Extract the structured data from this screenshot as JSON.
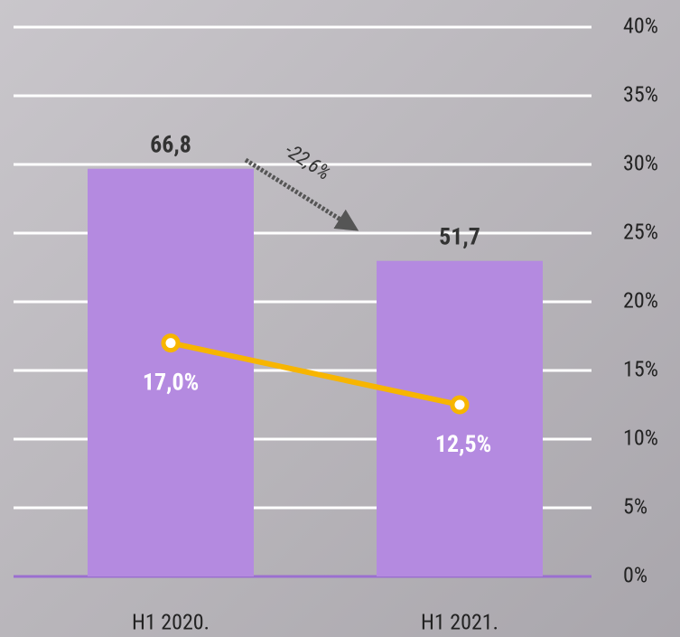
{
  "chart_data": {
    "type": "bar-line",
    "categories": [
      "H1 2020.",
      "H1 2021."
    ],
    "series": [
      {
        "type": "bar",
        "color": "#b48ae0",
        "values": [
          66.8,
          51.7
        ],
        "value_labels": [
          "66,8",
          "51,7"
        ]
      },
      {
        "type": "line",
        "axis": "y2",
        "color": "#f7b500",
        "values": [
          17.0,
          12.5
        ],
        "value_labels": [
          "17,0%",
          "12,5%"
        ]
      }
    ],
    "ylim": [
      0,
      90
    ],
    "y2lim": [
      0,
      40
    ],
    "y2ticks": [
      {
        "value": 0,
        "label": "0%"
      },
      {
        "value": 5,
        "label": "5%"
      },
      {
        "value": 10,
        "label": "10%"
      },
      {
        "value": 15,
        "label": "15%"
      },
      {
        "value": 20,
        "label": "20%"
      },
      {
        "value": 25,
        "label": "25%"
      },
      {
        "value": 30,
        "label": "30%"
      },
      {
        "value": 35,
        "label": "35%"
      },
      {
        "value": 40,
        "label": "40%"
      }
    ],
    "annotation": "-22,6%",
    "grid": true
  }
}
